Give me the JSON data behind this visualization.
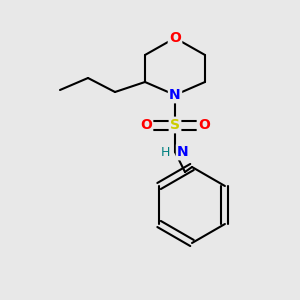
{
  "background_color": "#e8e8e8",
  "bond_color": "#000000",
  "bond_width": 1.5,
  "atoms": {
    "O": {
      "color": "#ff0000",
      "fontsize": 10,
      "fontweight": "bold"
    },
    "N": {
      "color": "#0000ff",
      "fontsize": 10,
      "fontweight": "bold"
    },
    "S": {
      "color": "#cccc00",
      "fontsize": 10,
      "fontweight": "bold"
    },
    "H": {
      "color": "#008080",
      "fontsize": 9,
      "fontweight": "normal"
    }
  },
  "fig_width": 3.0,
  "fig_height": 3.0,
  "dpi": 100
}
